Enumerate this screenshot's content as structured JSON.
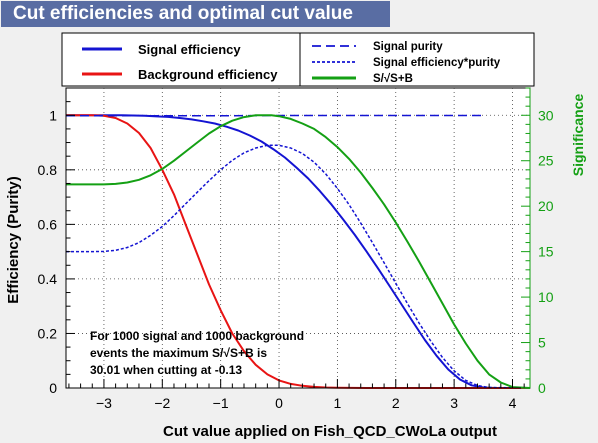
{
  "window": {
    "title": "Cut efficiencies and optimal cut value"
  },
  "legend": {
    "left": [
      "Signal efficiency",
      "Background efficiency"
    ],
    "right": [
      "Signal purity",
      "Signal efficiency*purity",
      "S/√S+B"
    ]
  },
  "annotation": [
    "For 1000 signal and 1000 background",
    "events the maximum S/√S+B is",
    "30.01 when cutting at -0.13"
  ],
  "colors": {
    "signal": "#1414d2",
    "background": "#e81414",
    "significance": "#14a014",
    "title_bg": "#596da3"
  },
  "chart_data": {
    "type": "line",
    "title": "Cut efficiencies and optimal cut value",
    "xlabel": "Cut value applied on Fish_QCD_CWoLa output",
    "ylabel": "Efficiency (Purity)",
    "y2label": "Significance",
    "xlim": [
      -3.65,
      4.3
    ],
    "ylim": [
      0,
      1.1
    ],
    "y2lim": [
      0,
      33
    ],
    "x_ticks": [
      -3,
      -2,
      -1,
      0,
      1,
      2,
      3,
      4
    ],
    "y_ticks": [
      0,
      0.2,
      0.4,
      0.6,
      0.8,
      1
    ],
    "y2_ticks": [
      0,
      5,
      10,
      15,
      20,
      25,
      30
    ],
    "x_tick_labels": [
      "−3",
      "−2",
      "−1",
      "0",
      "1",
      "2",
      "3",
      "4"
    ],
    "y_tick_labels": [
      "0",
      "0.2",
      "0.4",
      "0.6",
      "0.8",
      "1"
    ],
    "y2_tick_labels": [
      "0",
      "5",
      "10",
      "15",
      "20",
      "25",
      "30"
    ],
    "grid": true,
    "series": [
      {
        "name": "Signal efficiency",
        "axis": "left",
        "style": "solid",
        "x": [
          -3.65,
          -3.3,
          -3.0,
          -2.7,
          -2.5,
          -2.3,
          -2.1,
          -1.9,
          -1.7,
          -1.5,
          -1.3,
          -1.1,
          -0.9,
          -0.7,
          -0.5,
          -0.3,
          -0.1,
          0.1,
          0.3,
          0.5,
          0.7,
          0.9,
          1.1,
          1.3,
          1.5,
          1.7,
          1.9,
          2.1,
          2.3,
          2.5,
          2.7,
          2.9,
          3.1,
          3.3,
          3.5,
          3.7,
          4.3
        ],
        "y": [
          1.0,
          1.0,
          1.0,
          1.0,
          0.999,
          0.998,
          0.996,
          0.994,
          0.99,
          0.985,
          0.978,
          0.97,
          0.958,
          0.944,
          0.926,
          0.904,
          0.876,
          0.845,
          0.808,
          0.768,
          0.722,
          0.672,
          0.618,
          0.561,
          0.5,
          0.437,
          0.372,
          0.306,
          0.24,
          0.176,
          0.118,
          0.068,
          0.031,
          0.01,
          0.002,
          0.0,
          0.0
        ]
      },
      {
        "name": "Background efficiency",
        "axis": "left",
        "style": "solid",
        "x": [
          -3.65,
          -3.2,
          -3.0,
          -2.8,
          -2.6,
          -2.4,
          -2.2,
          -2.0,
          -1.8,
          -1.6,
          -1.4,
          -1.2,
          -1.0,
          -0.8,
          -0.6,
          -0.4,
          -0.2,
          0.0,
          0.2,
          0.4,
          0.6,
          0.8,
          1.0,
          1.5,
          2.0,
          4.3
        ],
        "y": [
          1.0,
          1.0,
          0.998,
          0.99,
          0.97,
          0.935,
          0.88,
          0.8,
          0.71,
          0.6,
          0.49,
          0.38,
          0.285,
          0.2,
          0.135,
          0.085,
          0.05,
          0.028,
          0.015,
          0.008,
          0.004,
          0.002,
          0.001,
          0.0,
          0.0,
          0.0
        ]
      },
      {
        "name": "Signal purity",
        "axis": "left",
        "style": "dashed",
        "x": [
          -3.65,
          -3.0,
          -2.0,
          -1.0,
          0.0,
          1.0,
          2.0,
          3.0,
          3.5
        ],
        "y": [
          0.998,
          0.998,
          0.998,
          0.998,
          0.999,
          0.999,
          0.999,
          0.999,
          0.999
        ]
      },
      {
        "name": "Signal efficiency*purity",
        "axis": "left",
        "style": "dotted",
        "x": [
          -3.65,
          -3.2,
          -3.0,
          -2.8,
          -2.6,
          -2.4,
          -2.2,
          -2.0,
          -1.8,
          -1.6,
          -1.4,
          -1.2,
          -1.0,
          -0.8,
          -0.6,
          -0.4,
          -0.2,
          0.0,
          0.2,
          0.4,
          0.6,
          0.8,
          1.0,
          1.2,
          1.4,
          1.6,
          1.8,
          2.0,
          2.2,
          2.4,
          2.6,
          2.8,
          3.0,
          3.2,
          3.4,
          3.6,
          4.3
        ],
        "y": [
          0.5,
          0.5,
          0.501,
          0.505,
          0.515,
          0.533,
          0.56,
          0.592,
          0.632,
          0.675,
          0.718,
          0.76,
          0.8,
          0.835,
          0.862,
          0.88,
          0.89,
          0.89,
          0.88,
          0.86,
          0.828,
          0.785,
          0.732,
          0.672,
          0.605,
          0.533,
          0.459,
          0.384,
          0.31,
          0.238,
          0.172,
          0.112,
          0.063,
          0.028,
          0.009,
          0.002,
          0.0
        ]
      },
      {
        "name": "S/√S+B",
        "axis": "right",
        "style": "solid",
        "x": [
          -3.65,
          -3.2,
          -3.0,
          -2.8,
          -2.6,
          -2.4,
          -2.2,
          -2.0,
          -1.8,
          -1.6,
          -1.4,
          -1.2,
          -1.0,
          -0.8,
          -0.6,
          -0.4,
          -0.2,
          -0.13,
          0.0,
          0.2,
          0.4,
          0.6,
          0.8,
          1.0,
          1.2,
          1.4,
          1.6,
          1.8,
          2.0,
          2.2,
          2.4,
          2.6,
          2.8,
          3.0,
          3.2,
          3.4,
          3.6,
          3.8,
          4.0,
          4.3
        ],
        "y": [
          22.4,
          22.4,
          22.4,
          22.45,
          22.6,
          22.9,
          23.4,
          24.1,
          25.0,
          26.0,
          27.0,
          28.0,
          28.8,
          29.4,
          29.8,
          30.0,
          30.0,
          30.01,
          29.9,
          29.6,
          29.1,
          28.5,
          27.6,
          26.5,
          25.2,
          23.7,
          22.0,
          20.2,
          18.2,
          16.1,
          13.9,
          11.6,
          9.3,
          7.0,
          4.9,
          3.0,
          1.5,
          0.6,
          0.1,
          0.0
        ]
      }
    ]
  }
}
